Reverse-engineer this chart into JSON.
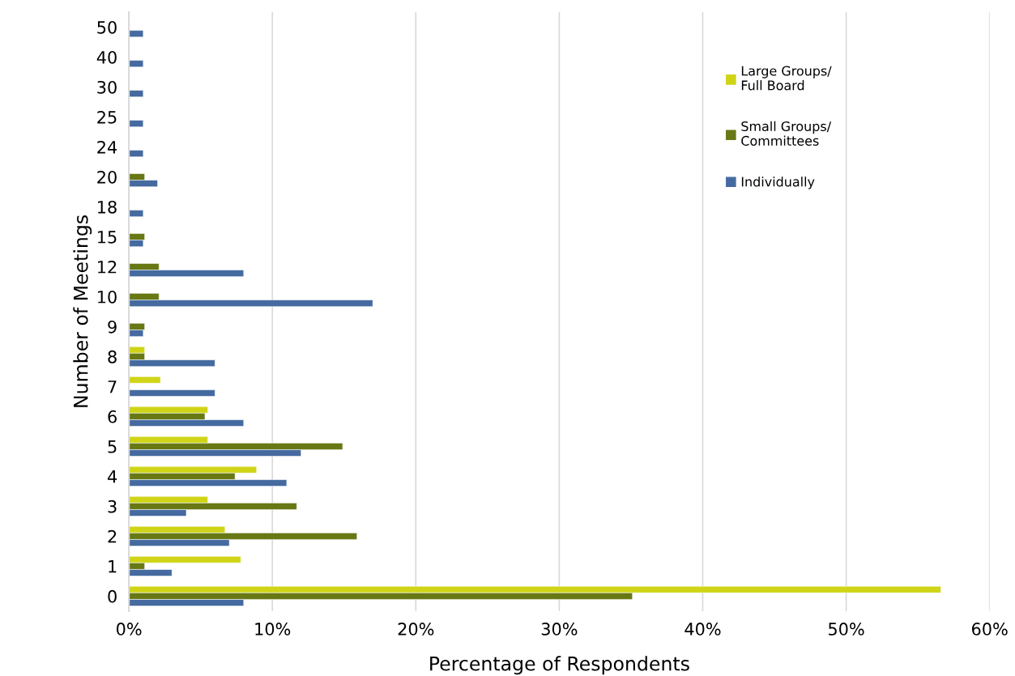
{
  "chart_data": {
    "type": "bar",
    "orientation": "horizontal",
    "xlabel": "Percentage of Respondents",
    "ylabel": "Number of Meetings",
    "categories": [
      "50",
      "40",
      "30",
      "25",
      "24",
      "20",
      "18",
      "15",
      "12",
      "10",
      "9",
      "8",
      "7",
      "6",
      "5",
      "4",
      "3",
      "2",
      "1",
      "0"
    ],
    "series": [
      {
        "name": "Large Groups/\nFull Board",
        "color": "#cfd416",
        "values": [
          null,
          null,
          null,
          null,
          null,
          null,
          null,
          null,
          null,
          null,
          null,
          1.1,
          2.2,
          5.5,
          5.5,
          8.9,
          5.5,
          6.7,
          7.8,
          56.6
        ]
      },
      {
        "name": "Small Groups/\nCommittees",
        "color": "#677814",
        "values": [
          null,
          null,
          null,
          null,
          null,
          1.1,
          null,
          1.1,
          2.1,
          2.1,
          1.1,
          1.1,
          null,
          5.3,
          14.9,
          7.4,
          11.7,
          15.9,
          1.1,
          35.1
        ]
      },
      {
        "name": "Individually",
        "color": "#456aa0",
        "values": [
          1,
          1,
          1,
          1,
          1,
          2,
          1,
          1,
          8,
          17,
          1,
          6,
          6,
          8,
          12,
          11,
          4,
          7,
          3,
          8
        ]
      }
    ],
    "xlim": [
      0,
      60
    ],
    "xticks": [
      {
        "value": 0,
        "label": "0%"
      },
      {
        "value": 10,
        "label": "10%"
      },
      {
        "value": 20,
        "label": "20%"
      },
      {
        "value": 30,
        "label": "30%"
      },
      {
        "value": 40,
        "label": "40%"
      },
      {
        "value": 50,
        "label": "50%"
      },
      {
        "value": 60,
        "label": "60%"
      }
    ],
    "grid": "x",
    "legend": "top right"
  }
}
